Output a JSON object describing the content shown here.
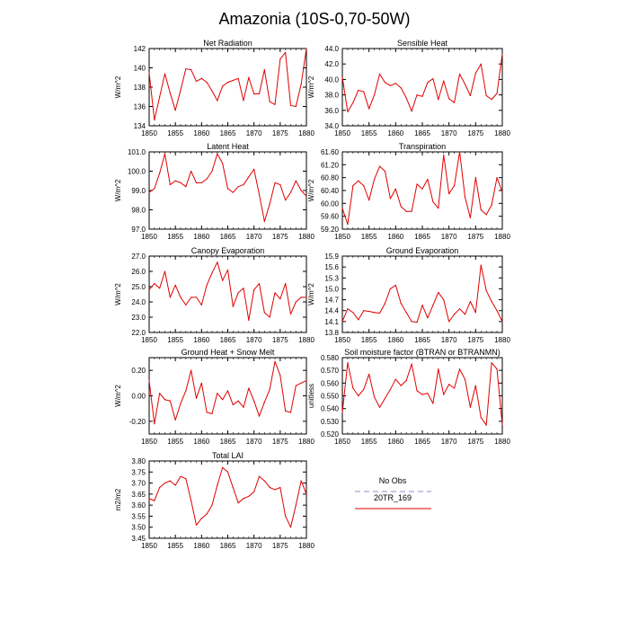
{
  "title": "Amazonia (10S-0,70-50W)",
  "legend": {
    "placement": "lower-right",
    "entries": [
      {
        "label": "No Obs",
        "color": "#8c8cd9",
        "style": "dashed"
      },
      {
        "label": "20TR_169",
        "color": "#e00000",
        "style": "solid"
      }
    ]
  },
  "chart_data": [
    {
      "type": "line",
      "title": "Net Radiation",
      "ylabel": "W/m^2",
      "xlim": [
        1850,
        1880
      ],
      "xticks": [
        "1850",
        "1855",
        "1860",
        "1865",
        "1870",
        "1875",
        "1880"
      ],
      "ylim": [
        134,
        142
      ],
      "yticks": [
        "134",
        "136",
        "138",
        "140",
        "142"
      ],
      "x_start": 1850,
      "series": [
        {
          "color": "#e00000",
          "values": [
            139.5,
            134.6,
            137.0,
            139.4,
            137.4,
            135.6,
            137.7,
            139.9,
            139.8,
            138.6,
            138.9,
            138.5,
            137.6,
            136.6,
            138.1,
            138.5,
            138.7,
            138.9,
            136.6,
            139.0,
            137.3,
            137.3,
            139.8,
            136.5,
            136.2,
            140.9,
            141.6,
            136.1,
            136.0,
            138.3,
            142.0
          ]
        }
      ]
    },
    {
      "type": "line",
      "title": "Sensible Heat",
      "ylabel": "W/m^2",
      "xlim": [
        1850,
        1880
      ],
      "xticks": [
        "1850",
        "1855",
        "1860",
        "1865",
        "1870",
        "1875",
        "1880"
      ],
      "ylim": [
        34.0,
        44.0
      ],
      "yticks": [
        "34.0",
        "36.0",
        "38.0",
        "40.0",
        "42.0",
        "44.0"
      ],
      "x_start": 1850,
      "series": [
        {
          "color": "#e00000",
          "values": [
            40.3,
            35.8,
            37.0,
            38.6,
            38.4,
            36.2,
            38.0,
            40.7,
            39.6,
            39.2,
            39.5,
            38.9,
            37.6,
            35.9,
            38.0,
            37.8,
            39.6,
            40.1,
            37.4,
            39.8,
            37.5,
            37.0,
            40.7,
            39.4,
            37.9,
            40.8,
            42.0,
            37.9,
            37.4,
            38.2,
            43.3
          ]
        }
      ]
    },
    {
      "type": "line",
      "title": "Latent Heat",
      "ylabel": "W/m^2",
      "xlim": [
        1850,
        1880
      ],
      "xticks": [
        "1850",
        "1855",
        "1860",
        "1865",
        "1870",
        "1875",
        "1880"
      ],
      "ylim": [
        97.0,
        101.0
      ],
      "yticks": [
        "97.0",
        "98.0",
        "99.0",
        "100.0",
        "101.0"
      ],
      "x_start": 1850,
      "series": [
        {
          "color": "#e00000",
          "values": [
            98.9,
            99.1,
            99.9,
            100.9,
            99.3,
            99.5,
            99.4,
            99.2,
            100.0,
            99.4,
            99.4,
            99.6,
            100.0,
            100.9,
            100.4,
            99.1,
            98.9,
            99.2,
            99.3,
            99.7,
            100.1,
            98.8,
            97.4,
            98.3,
            99.4,
            99.3,
            98.5,
            98.9,
            99.5,
            99.0,
            98.7
          ]
        }
      ]
    },
    {
      "type": "line",
      "title": "Transpiration",
      "ylabel": "W/m^2",
      "xlim": [
        1850,
        1880
      ],
      "xticks": [
        "1850",
        "1855",
        "1860",
        "1865",
        "1870",
        "1875",
        "1880"
      ],
      "ylim": [
        59.2,
        61.6
      ],
      "yticks": [
        "59.20",
        "59.60",
        "60.00",
        "60.40",
        "60.80",
        "61.20",
        "61.60"
      ],
      "x_start": 1850,
      "series": [
        {
          "color": "#e00000",
          "values": [
            59.85,
            59.35,
            60.55,
            60.7,
            60.55,
            60.1,
            60.75,
            61.15,
            61.0,
            60.15,
            60.45,
            59.9,
            59.75,
            59.75,
            60.6,
            60.45,
            60.75,
            60.05,
            59.85,
            61.5,
            60.3,
            60.55,
            61.6,
            60.2,
            59.55,
            60.8,
            59.8,
            59.65,
            59.95,
            60.8,
            60.35
          ]
        }
      ]
    },
    {
      "type": "line",
      "title": "Canopy Evaporation",
      "ylabel": "W/m^2",
      "xlim": [
        1850,
        1880
      ],
      "xticks": [
        "1850",
        "1855",
        "1860",
        "1865",
        "1870",
        "1875",
        "1880"
      ],
      "ylim": [
        22.0,
        27.0
      ],
      "yticks": [
        "22.0",
        "23.0",
        "24.0",
        "25.0",
        "26.0",
        "27.0"
      ],
      "x_start": 1850,
      "series": [
        {
          "color": "#e00000",
          "values": [
            24.8,
            25.2,
            24.9,
            26.0,
            24.3,
            25.1,
            24.3,
            23.8,
            24.3,
            24.3,
            23.8,
            25.1,
            25.9,
            26.6,
            25.4,
            26.1,
            23.7,
            24.6,
            24.9,
            22.8,
            24.8,
            25.2,
            23.3,
            23.0,
            24.6,
            24.2,
            25.2,
            23.2,
            24.0,
            24.3,
            24.3
          ]
        }
      ]
    },
    {
      "type": "line",
      "title": "Ground Evaporation",
      "ylabel": "W/m^2",
      "xlim": [
        1850,
        1880
      ],
      "xticks": [
        "1850",
        "1855",
        "1860",
        "1865",
        "1870",
        "1875",
        "1880"
      ],
      "ylim": [
        13.8,
        15.9
      ],
      "yticks": [
        "13.8",
        "14.1",
        "14.4",
        "14.7",
        "15.0",
        "15.3",
        "15.6",
        "15.9"
      ],
      "x_start": 1850,
      "series": [
        {
          "color": "#e00000",
          "values": [
            14.1,
            14.45,
            14.35,
            14.15,
            14.4,
            14.38,
            14.35,
            14.33,
            14.6,
            15.0,
            15.1,
            14.6,
            14.35,
            14.1,
            14.08,
            14.55,
            14.2,
            14.55,
            14.9,
            14.7,
            14.1,
            14.3,
            14.45,
            14.3,
            14.65,
            14.35,
            15.65,
            14.95,
            14.65,
            14.4,
            14.1
          ]
        }
      ]
    },
    {
      "type": "line",
      "title": "Ground Heat + Snow Melt",
      "ylabel": "W/m^2",
      "xlim": [
        1850,
        1880
      ],
      "xticks": [
        "1850",
        "1855",
        "1860",
        "1865",
        "1870",
        "1875",
        "1880"
      ],
      "ylim": [
        -0.3,
        0.3
      ],
      "yticks": [
        "-0.20",
        "0.00",
        "0.20"
      ],
      "x_start": 1850,
      "series": [
        {
          "color": "#e00000",
          "values": [
            0.12,
            -0.22,
            0.02,
            -0.03,
            -0.04,
            -0.19,
            -0.06,
            0.04,
            0.2,
            -0.02,
            0.1,
            -0.13,
            -0.14,
            0.02,
            -0.03,
            0.04,
            -0.07,
            -0.04,
            -0.09,
            0.06,
            -0.04,
            -0.16,
            -0.05,
            0.05,
            0.27,
            0.16,
            -0.12,
            -0.13,
            0.08,
            0.1,
            0.12
          ]
        }
      ]
    },
    {
      "type": "line",
      "title": "Soil moisture factor (BTRAN or BTRANMN)",
      "ylabel": "unitless",
      "xlim": [
        1850,
        1880
      ],
      "xticks": [
        "1850",
        "1855",
        "1860",
        "1865",
        "1870",
        "1875",
        "1880"
      ],
      "ylim": [
        0.52,
        0.58
      ],
      "yticks": [
        "0.520",
        "0.530",
        "0.540",
        "0.550",
        "0.560",
        "0.570",
        "0.580"
      ],
      "x_start": 1850,
      "series": [
        {
          "color": "#e00000",
          "values": [
            0.537,
            0.576,
            0.556,
            0.55,
            0.555,
            0.567,
            0.549,
            0.541,
            0.548,
            0.555,
            0.563,
            0.558,
            0.562,
            0.575,
            0.554,
            0.551,
            0.552,
            0.544,
            0.571,
            0.551,
            0.559,
            0.556,
            0.571,
            0.563,
            0.541,
            0.558,
            0.533,
            0.527,
            0.576,
            0.571,
            0.527
          ]
        }
      ]
    },
    {
      "type": "line",
      "title": "Total LAI",
      "ylabel": "m2/m2",
      "xlim": [
        1850,
        1880
      ],
      "xticks": [
        "1850",
        "1855",
        "1860",
        "1865",
        "1870",
        "1875",
        "1880"
      ],
      "ylim": [
        3.45,
        3.8
      ],
      "yticks": [
        "3.45",
        "3.50",
        "3.55",
        "3.60",
        "3.65",
        "3.70",
        "3.75",
        "3.80"
      ],
      "x_start": 1850,
      "series": [
        {
          "color": "#e00000",
          "values": [
            3.63,
            3.62,
            3.68,
            3.7,
            3.71,
            3.69,
            3.73,
            3.72,
            3.62,
            3.51,
            3.54,
            3.56,
            3.6,
            3.69,
            3.77,
            3.75,
            3.68,
            3.61,
            3.63,
            3.64,
            3.66,
            3.73,
            3.71,
            3.68,
            3.67,
            3.68,
            3.55,
            3.5,
            3.6,
            3.71,
            3.65
          ]
        }
      ]
    }
  ]
}
